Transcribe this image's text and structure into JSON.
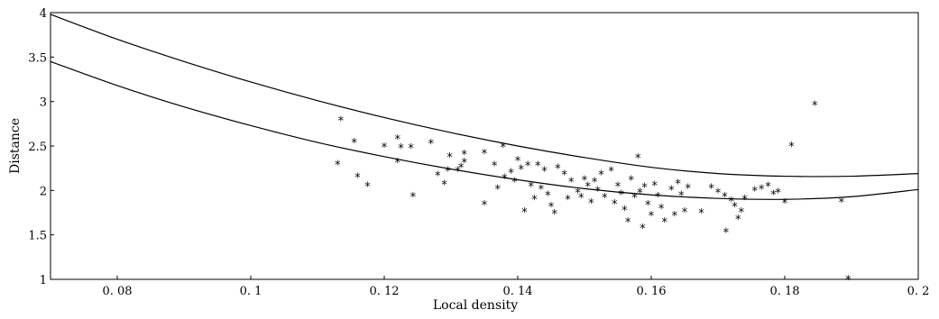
{
  "chart_data": {
    "type": "scatter",
    "title": "",
    "xlabel": "Local density",
    "ylabel": "Distance",
    "xlim": [
      0.07,
      0.2
    ],
    "ylim": [
      1,
      4
    ],
    "xticks": [
      0.08,
      0.1,
      0.12,
      0.14,
      0.16,
      0.18,
      0.2
    ],
    "xtick_labels": [
      "0. 08",
      "0. 1",
      "0. 12",
      "0. 14",
      "0. 16",
      "0. 18",
      "0. 2"
    ],
    "yticks": [
      1,
      1.5,
      2,
      2.5,
      3,
      3.5,
      4
    ],
    "ytick_labels": [
      "1",
      "1.5",
      "2",
      "2.5",
      "3",
      "3.5",
      "4"
    ],
    "grid": false,
    "marker": "*",
    "curves": [
      {
        "x": [
          0.07,
          0.08,
          0.09,
          0.1,
          0.11,
          0.12,
          0.13,
          0.14,
          0.15,
          0.16,
          0.17,
          0.18,
          0.19,
          0.2
        ],
        "y": [
          3.98,
          3.7,
          3.45,
          3.22,
          3.01,
          2.82,
          2.65,
          2.5,
          2.37,
          2.26,
          2.19,
          2.16,
          2.16,
          2.19
        ]
      },
      {
        "x": [
          0.07,
          0.08,
          0.09,
          0.1,
          0.11,
          0.12,
          0.13,
          0.14,
          0.15,
          0.16,
          0.17,
          0.18,
          0.19,
          0.2
        ],
        "y": [
          3.45,
          3.18,
          2.94,
          2.73,
          2.54,
          2.38,
          2.24,
          2.12,
          2.02,
          1.95,
          1.91,
          1.9,
          1.93,
          2.01
        ]
      }
    ],
    "points": [
      [
        0.1135,
        2.79
      ],
      [
        0.113,
        2.29
      ],
      [
        0.1155,
        2.54
      ],
      [
        0.116,
        2.15
      ],
      [
        0.1175,
        2.05
      ],
      [
        0.12,
        2.49
      ],
      [
        0.122,
        2.58
      ],
      [
        0.1225,
        2.48
      ],
      [
        0.124,
        2.48
      ],
      [
        0.122,
        2.32
      ],
      [
        0.1243,
        1.93
      ],
      [
        0.127,
        2.53
      ],
      [
        0.128,
        2.17
      ],
      [
        0.129,
        2.07
      ],
      [
        0.1295,
        2.22
      ],
      [
        0.1298,
        2.38
      ],
      [
        0.131,
        2.22
      ],
      [
        0.132,
        2.41
      ],
      [
        0.132,
        2.32
      ],
      [
        0.1315,
        2.26
      ],
      [
        0.135,
        1.84
      ],
      [
        0.135,
        2.42
      ],
      [
        0.1365,
        2.28
      ],
      [
        0.137,
        2.02
      ],
      [
        0.1378,
        2.49
      ],
      [
        0.138,
        2.14
      ],
      [
        0.139,
        2.2
      ],
      [
        0.1395,
        2.1
      ],
      [
        0.14,
        2.34
      ],
      [
        0.1405,
        2.24
      ],
      [
        0.141,
        1.76
      ],
      [
        0.1415,
        2.28
      ],
      [
        0.142,
        2.05
      ],
      [
        0.1425,
        1.9
      ],
      [
        0.143,
        2.28
      ],
      [
        0.1435,
        2.02
      ],
      [
        0.144,
        2.22
      ],
      [
        0.1445,
        1.95
      ],
      [
        0.145,
        1.82
      ],
      [
        0.1455,
        1.74
      ],
      [
        0.146,
        2.25
      ],
      [
        0.147,
        2.18
      ],
      [
        0.1475,
        1.9
      ],
      [
        0.148,
        2.1
      ],
      [
        0.149,
        1.98
      ],
      [
        0.1495,
        1.92
      ],
      [
        0.15,
        2.12
      ],
      [
        0.1505,
        2.05
      ],
      [
        0.151,
        1.86
      ],
      [
        0.1515,
        2.1
      ],
      [
        0.152,
        2.0
      ],
      [
        0.1525,
        2.18
      ],
      [
        0.153,
        1.92
      ],
      [
        0.154,
        2.22
      ],
      [
        0.1545,
        1.85
      ],
      [
        0.155,
        2.05
      ],
      [
        0.1555,
        1.96
      ],
      [
        0.156,
        1.78
      ],
      [
        0.1565,
        1.65
      ],
      [
        0.157,
        2.12
      ],
      [
        0.1575,
        1.92
      ],
      [
        0.158,
        2.37
      ],
      [
        0.1583,
        1.98
      ],
      [
        0.1587,
        1.58
      ],
      [
        0.159,
        2.04
      ],
      [
        0.1595,
        1.84
      ],
      [
        0.16,
        1.72
      ],
      [
        0.1605,
        2.06
      ],
      [
        0.161,
        1.93
      ],
      [
        0.1615,
        1.8
      ],
      [
        0.162,
        1.65
      ],
      [
        0.163,
        2.01
      ],
      [
        0.1635,
        1.72
      ],
      [
        0.164,
        2.08
      ],
      [
        0.1645,
        1.95
      ],
      [
        0.165,
        1.76
      ],
      [
        0.1655,
        2.03
      ],
      [
        0.1675,
        1.75
      ],
      [
        0.169,
        2.03
      ],
      [
        0.17,
        1.98
      ],
      [
        0.171,
        1.93
      ],
      [
        0.1712,
        1.53
      ],
      [
        0.172,
        1.88
      ],
      [
        0.1725,
        1.82
      ],
      [
        0.173,
        1.68
      ],
      [
        0.1735,
        1.76
      ],
      [
        0.174,
        1.9
      ],
      [
        0.1755,
        2.0
      ],
      [
        0.1765,
        2.02
      ],
      [
        0.1775,
        2.05
      ],
      [
        0.1783,
        1.96
      ],
      [
        0.179,
        1.98
      ],
      [
        0.18,
        1.86
      ],
      [
        0.181,
        2.5
      ],
      [
        0.1845,
        2.96
      ],
      [
        0.1885,
        1.87
      ],
      [
        0.1895,
        1.0
      ]
    ]
  }
}
